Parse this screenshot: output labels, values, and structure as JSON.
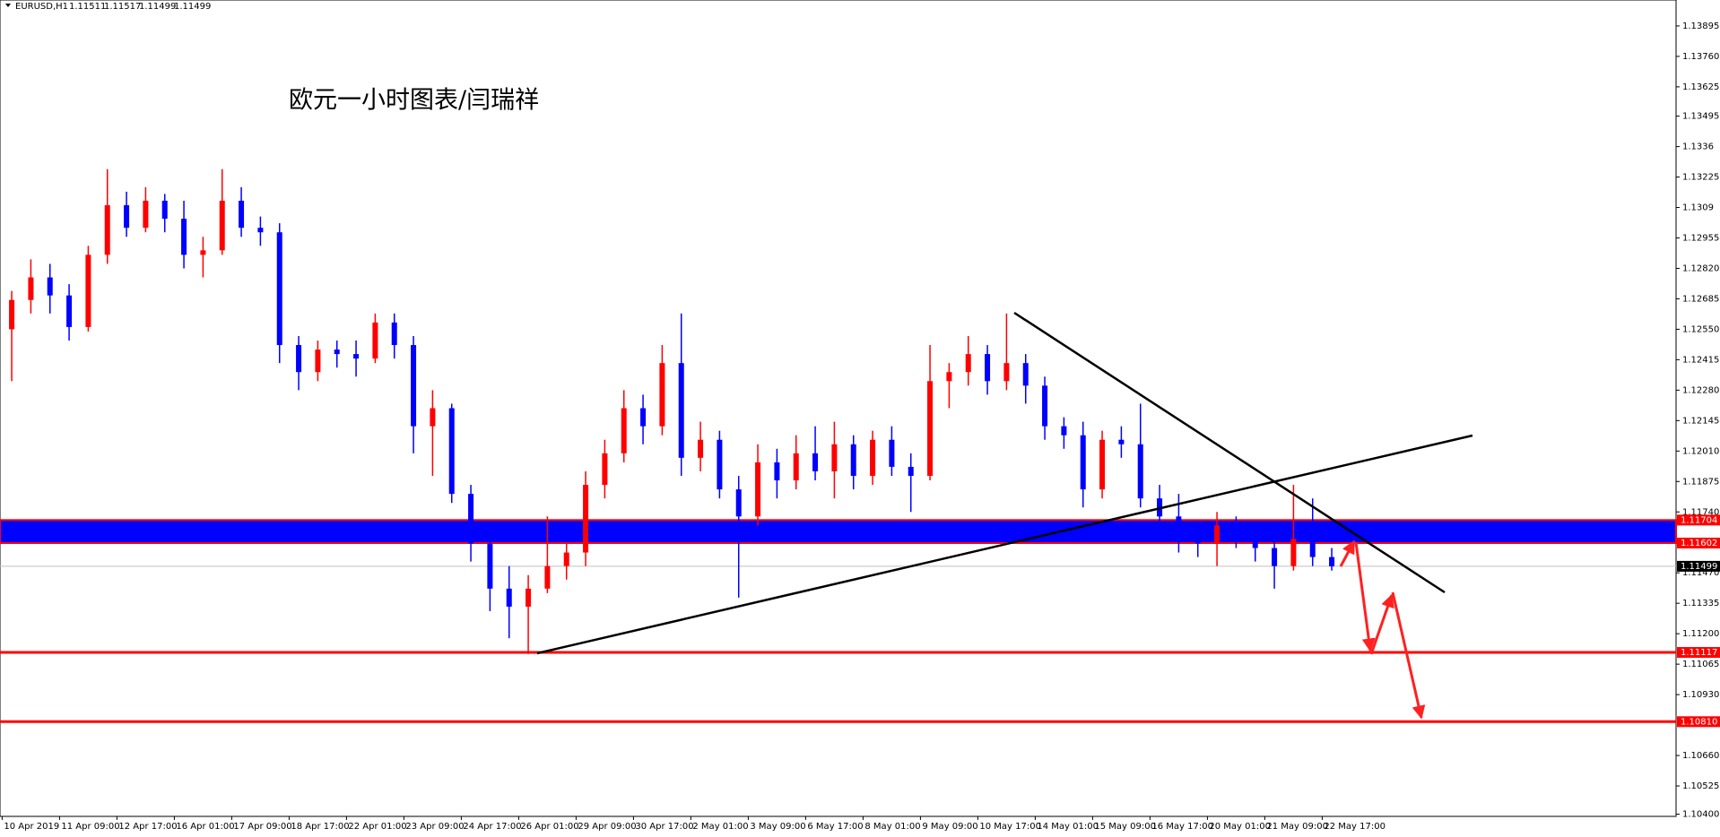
{
  "chart_data": {
    "type": "candlestick",
    "header": {
      "symbol": "EURUSD,H1",
      "quotes": [
        1.11511,
        1.11517,
        1.11499,
        1.11499
      ]
    },
    "title": "欧元一小时图表/闫瑞祥",
    "categories": [
      "10 Apr 2019",
      null,
      null,
      "11 Apr 09:00",
      null,
      null,
      "12 Apr 17:00",
      null,
      null,
      "16 Apr 01:00",
      null,
      null,
      "17 Apr 09:00",
      null,
      null,
      "18 Apr 17:00",
      null,
      null,
      "22 Apr 01:00",
      null,
      null,
      "23 Apr 09:00",
      null,
      null,
      "24 Apr 17:00",
      null,
      null,
      "26 Apr 01:00",
      null,
      null,
      "29 Apr 09:00",
      null,
      null,
      "30 Apr 17:00",
      null,
      null,
      "2 May 01:00",
      null,
      null,
      "3 May 09:00",
      null,
      null,
      "6 May 17:00",
      null,
      null,
      "8 May 01:00",
      null,
      null,
      "9 May 09:00",
      null,
      null,
      "10 May 17:00",
      null,
      null,
      "14 May 01:00",
      null,
      null,
      "15 May 09:00",
      null,
      null,
      "16 May 17:00",
      null,
      null,
      "20 May 01:00",
      null,
      null,
      "21 May 09:00",
      null,
      null,
      "22 May 17:00"
    ],
    "open": [
      1.1255,
      1.1268,
      1.1278,
      1.127,
      1.1256,
      1.1288,
      1.131,
      1.13,
      1.1312,
      1.1304,
      1.1288,
      1.129,
      1.1312,
      1.13,
      1.1298,
      1.1248,
      1.1236,
      1.1246,
      1.1244,
      1.1242,
      1.1258,
      1.1248,
      1.1212,
      1.122,
      1.1182,
      1.116,
      1.114,
      1.1132,
      1.114,
      1.115,
      1.1156,
      1.1186,
      1.12,
      1.122,
      1.1212,
      1.124,
      1.1198,
      1.1206,
      1.1184,
      1.1172,
      1.1196,
      1.1188,
      1.12,
      1.1192,
      1.1204,
      1.119,
      1.1206,
      1.1194,
      1.119,
      1.1232,
      1.1236,
      1.1244,
      1.1232,
      1.124,
      1.123,
      1.1212,
      1.1208,
      1.1184,
      1.1206,
      1.1204,
      1.118,
      1.1172,
      1.1162,
      1.116,
      1.1168,
      1.1164,
      1.1158,
      1.115,
      1.1162,
      1.1154
    ],
    "high": [
      1.1272,
      1.1286,
      1.1284,
      1.1275,
      1.1292,
      1.1326,
      1.1316,
      1.1318,
      1.1315,
      1.1312,
      1.1296,
      1.1326,
      1.1318,
      1.1305,
      1.1302,
      1.1252,
      1.125,
      1.125,
      1.125,
      1.1262,
      1.1262,
      1.1252,
      1.1228,
      1.1222,
      1.1186,
      1.1168,
      1.115,
      1.1146,
      1.1172,
      1.116,
      1.1192,
      1.1206,
      1.1228,
      1.1226,
      1.1248,
      1.1262,
      1.1214,
      1.121,
      1.119,
      1.1204,
      1.1202,
      1.1208,
      1.1212,
      1.1214,
      1.1208,
      1.121,
      1.1212,
      1.12,
      1.1248,
      1.124,
      1.1252,
      1.1248,
      1.1262,
      1.1244,
      1.1234,
      1.1216,
      1.1214,
      1.121,
      1.1212,
      1.1222,
      1.1186,
      1.1182,
      1.117,
      1.1174,
      1.1172,
      1.1168,
      1.1162,
      1.1186,
      1.118,
      1.1158
    ],
    "low": [
      1.1232,
      1.1262,
      1.1262,
      1.125,
      1.1254,
      1.1284,
      1.1296,
      1.1298,
      1.1298,
      1.1282,
      1.1278,
      1.1288,
      1.1296,
      1.1292,
      1.124,
      1.1228,
      1.1232,
      1.1238,
      1.1234,
      1.124,
      1.1242,
      1.12,
      1.119,
      1.1178,
      1.1152,
      1.113,
      1.1118,
      1.1111,
      1.1138,
      1.1144,
      1.115,
      1.118,
      1.1196,
      1.1204,
      1.1208,
      1.119,
      1.1192,
      1.118,
      1.1136,
      1.1168,
      1.118,
      1.1184,
      1.1188,
      1.118,
      1.1184,
      1.1186,
      1.119,
      1.1174,
      1.1188,
      1.122,
      1.123,
      1.1226,
      1.1228,
      1.1222,
      1.1206,
      1.1202,
      1.1176,
      1.118,
      1.1198,
      1.1176,
      1.1168,
      1.1156,
      1.1154,
      1.115,
      1.1158,
      1.1152,
      1.114,
      1.1148,
      1.115,
      1.1148
    ],
    "close": [
      1.1268,
      1.1278,
      1.127,
      1.1256,
      1.1288,
      1.131,
      1.13,
      1.1312,
      1.1304,
      1.1288,
      1.129,
      1.1312,
      1.13,
      1.1298,
      1.1248,
      1.1236,
      1.1246,
      1.1244,
      1.1242,
      1.1258,
      1.1248,
      1.1212,
      1.122,
      1.1182,
      1.116,
      1.114,
      1.1132,
      1.114,
      1.115,
      1.1156,
      1.1186,
      1.12,
      1.122,
      1.1212,
      1.124,
      1.1198,
      1.1206,
      1.1184,
      1.1172,
      1.1196,
      1.1188,
      1.12,
      1.1192,
      1.1204,
      1.119,
      1.1206,
      1.1194,
      1.119,
      1.1232,
      1.1236,
      1.1244,
      1.1232,
      1.124,
      1.123,
      1.1212,
      1.1208,
      1.1184,
      1.1206,
      1.1204,
      1.118,
      1.1172,
      1.1162,
      1.116,
      1.1168,
      1.1164,
      1.1158,
      1.115,
      1.1162,
      1.1154,
      1.11499
    ],
    "up_color": "#ff0000",
    "down_color": "#0000ff",
    "ylim": [
      1.1039,
      1.1401
    ],
    "yticks": [
      1.13895,
      {
        "value": 1.1376,
        "label": "1.13760"
      },
      1.13625,
      1.13495,
      1.1336,
      1.13225,
      1.1309,
      1.12955,
      {
        "value": 1.1282,
        "label": "1.12820"
      },
      1.12685,
      {
        "value": 1.1255,
        "label": "1.12550"
      },
      1.12415,
      {
        "value": 1.1228,
        "label": "1.12280"
      },
      1.12145,
      {
        "value": 1.1201,
        "label": "1.12010"
      },
      1.11875,
      {
        "value": 1.1174,
        "label": "1.11740"
      },
      {
        "value": 1.1147,
        "label": "1.11470"
      },
      1.11335,
      {
        "value": 1.112,
        "label": "1.11200"
      },
      1.11065,
      {
        "value": 1.1093,
        "label": "1.10930"
      },
      {
        "value": 1.1066,
        "label": "1.10660"
      },
      1.10525,
      {
        "value": 1.104,
        "label": "1.10400"
      }
    ],
    "zone": {
      "high": 1.11704,
      "low": 1.11602,
      "color": "#0000ff",
      "border": "#ff0000"
    },
    "levels": {
      "values": [
        1.11117,
        1.1081
      ],
      "value_labels": [
        "1.11117",
        "1.10810"
      ],
      "color": "#ff0000"
    },
    "current": {
      "value": 1.11499,
      "color": "#c0c0c0"
    }
  }
}
